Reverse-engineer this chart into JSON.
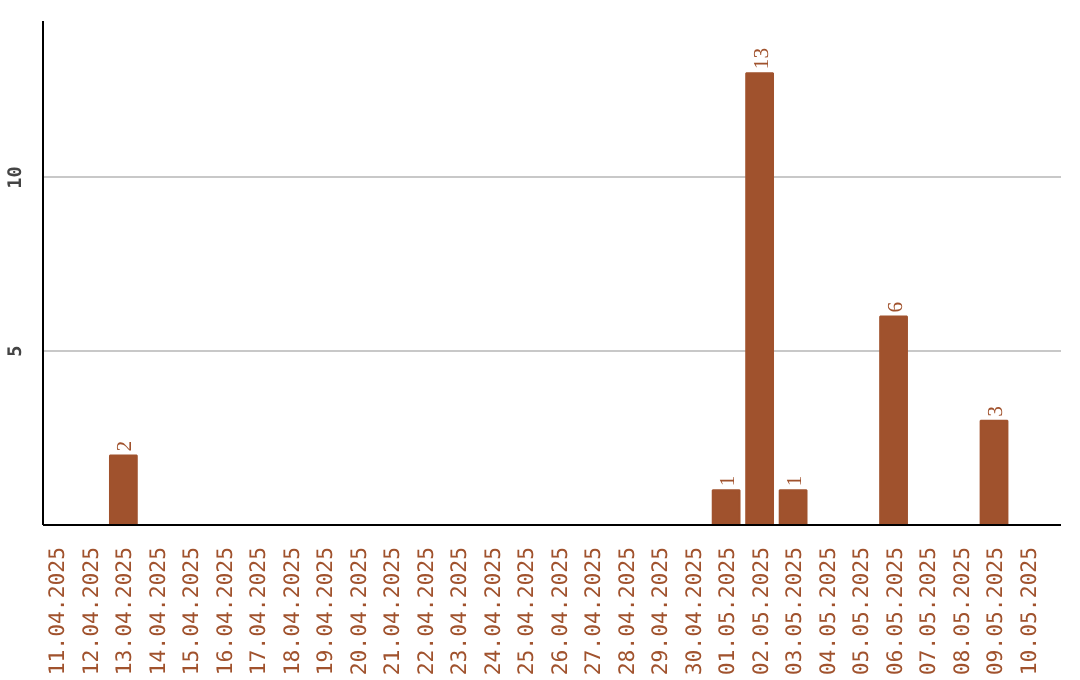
{
  "chart_data": {
    "type": "bar",
    "categories": [
      "11.04.2025",
      "12.04.2025",
      "13.04.2025",
      "14.04.2025",
      "15.04.2025",
      "16.04.2025",
      "17.04.2025",
      "18.04.2025",
      "19.04.2025",
      "20.04.2025",
      "21.04.2025",
      "22.04.2025",
      "23.04.2025",
      "24.04.2025",
      "25.04.2025",
      "26.04.2025",
      "27.04.2025",
      "28.04.2025",
      "29.04.2025",
      "30.04.2025",
      "01.05.2025",
      "02.05.2025",
      "03.05.2025",
      "04.05.2025",
      "05.05.2025",
      "06.05.2025",
      "07.05.2025",
      "08.05.2025",
      "09.05.2025",
      "10.05.2025"
    ],
    "values": [
      0,
      0,
      2,
      0,
      0,
      0,
      0,
      0,
      0,
      0,
      0,
      0,
      0,
      0,
      0,
      0,
      0,
      0,
      0,
      0,
      1,
      13,
      1,
      0,
      0,
      6,
      0,
      0,
      3,
      0
    ],
    "value_labels": [
      null,
      null,
      "2",
      null,
      null,
      null,
      null,
      null,
      null,
      null,
      null,
      null,
      null,
      null,
      null,
      null,
      null,
      null,
      null,
      null,
      "1",
      "13",
      "1",
      null,
      null,
      "6",
      null,
      null,
      "3",
      null
    ],
    "color": "#a0522d",
    "ylim": [
      0,
      14.5
    ],
    "yticks": [
      5,
      10
    ],
    "grid": "y"
  }
}
